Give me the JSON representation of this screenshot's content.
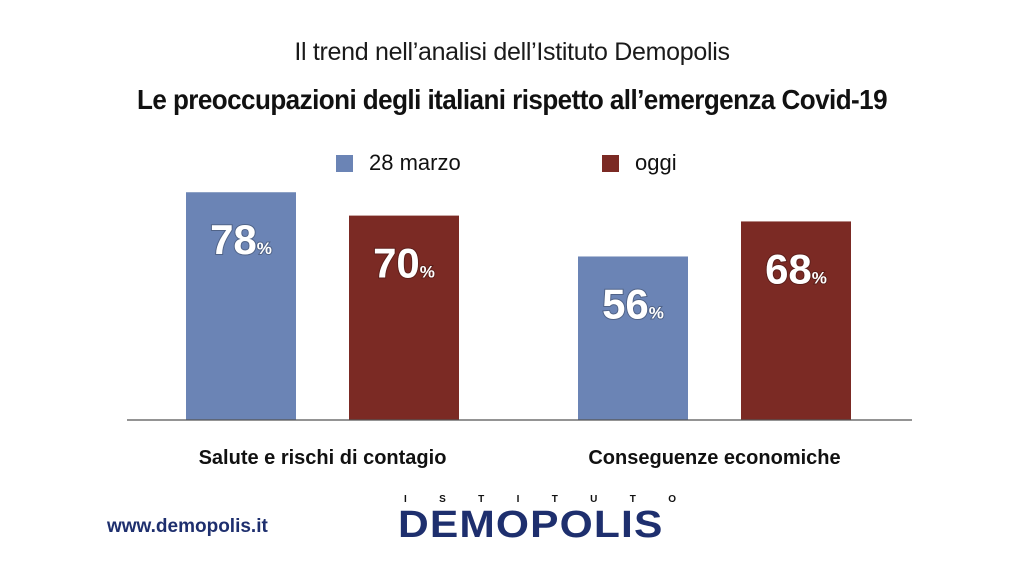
{
  "header": {
    "subtitle": "Il trend nell’analisi dell’Istituto Demopolis",
    "title": "Le preoccupazioni degli italiani rispetto all’emergenza Covid-19"
  },
  "colors": {
    "series1": "#6b84b5",
    "series2": "#7b2a24",
    "baseline": "#555555",
    "label": "#ffffff"
  },
  "chart_data": {
    "type": "bar",
    "title": "Le preoccupazioni degli italiani rispetto all’emergenza Covid-19",
    "categories": [
      "Salute e rischi di contagio",
      "Conseguenze economiche"
    ],
    "series": [
      {
        "name": "28 marzo",
        "values": [
          78,
          56
        ]
      },
      {
        "name": "oggi",
        "values": [
          70,
          68
        ]
      }
    ],
    "value_suffix": "%",
    "ylim": [
      0,
      100
    ],
    "grid": false,
    "legend": "top-center"
  },
  "footer": {
    "url": "www.demopolis.it",
    "logo_top": "ISTITUTO",
    "logo_main": "DEMOPOLIS"
  }
}
